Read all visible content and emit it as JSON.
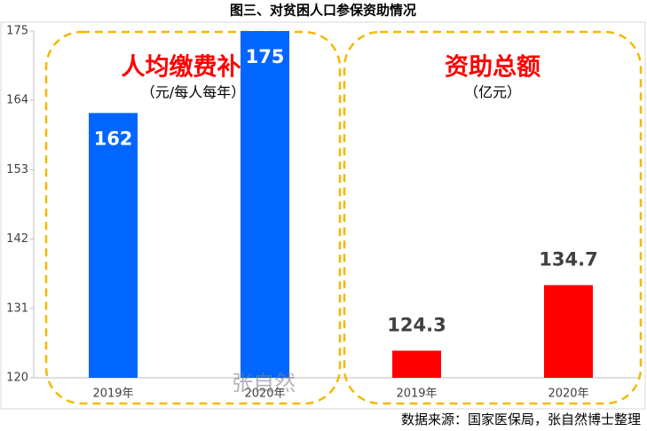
{
  "chart_data": {
    "type": "bar",
    "title": "图三、对贫困人口参保资助情况",
    "source": "数据来源：国家医保局，张自然博士整理",
    "watermark": "张自然",
    "ylim": [
      120,
      175
    ],
    "yticks": [
      120,
      131,
      142,
      153,
      164,
      175
    ],
    "panels": [
      {
        "title": "人均缴费补贴",
        "subtitle": "（元/每人每年）",
        "categories": [
          "2019年",
          "2020年"
        ],
        "values": [
          162,
          175
        ],
        "color": "#0066ff",
        "label_position": "inside"
      },
      {
        "title": "资助总额",
        "subtitle": "（亿元）",
        "categories": [
          "2019年",
          "2020年"
        ],
        "values": [
          124.3,
          134.7
        ],
        "color": "#ff0000",
        "label_position": "above"
      }
    ]
  }
}
